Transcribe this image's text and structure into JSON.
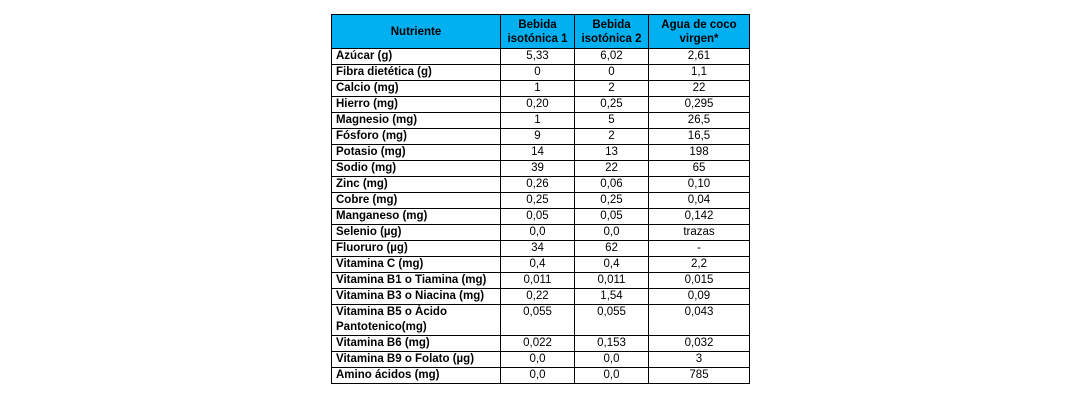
{
  "table": {
    "headers": [
      "Nutriente",
      "Bebida isotónica 1",
      "Bebida isotónica 2",
      "Agua de coco virgen*"
    ],
    "rows": [
      [
        "Azúcar (g)",
        "5,33",
        "6,02",
        "2,61"
      ],
      [
        "Fibra dietética (g)",
        "0",
        "0",
        "1,1"
      ],
      [
        "Calcio (mg)",
        "1",
        "2",
        "22"
      ],
      [
        "Hierro (mg)",
        "0,20",
        "0,25",
        "0,295"
      ],
      [
        "Magnesio (mg)",
        "1",
        "5",
        "26,5"
      ],
      [
        "Fósforo (mg)",
        "9",
        "2",
        "16,5"
      ],
      [
        "Potasio (mg)",
        "14",
        "13",
        "198"
      ],
      [
        "Sodio (mg)",
        "39",
        "22",
        "65"
      ],
      [
        "Zinc (mg)",
        "0,26",
        "0,06",
        "0,10"
      ],
      [
        "Cobre (mg)",
        "0,25",
        "0,25",
        "0,04"
      ],
      [
        "Manganeso (mg)",
        "0,05",
        "0,05",
        "0,142"
      ],
      [
        "Selenio (µg)",
        "0,0",
        "0,0",
        "trazas"
      ],
      [
        "Fluoruro (µg)",
        "34",
        "62",
        "-"
      ],
      [
        "Vitamina C (mg)",
        "0,4",
        "0,4",
        "2,2"
      ],
      [
        "Vitamina B1 o Tiamina (mg)",
        "0,011",
        "0,011",
        "0,015"
      ],
      [
        "Vitamina B3 o Niacina (mg)",
        "0,22",
        "1,54",
        "0,09"
      ],
      [
        "Vitamina B5 o Ácido Pantotenico(mg)",
        "0,055",
        "0,055",
        "0,043"
      ],
      [
        "Vitamina B6 (mg)",
        "0,022",
        "0,153",
        "0,032"
      ],
      [
        "Vitamina B9 o Folato (µg)",
        "0,0",
        "0,0",
        "3"
      ],
      [
        "Amino ácidos (mg)",
        "0,0",
        "0,0",
        "785"
      ]
    ]
  }
}
